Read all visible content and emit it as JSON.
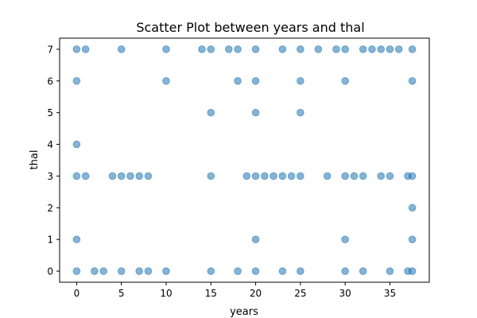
{
  "chart_data": {
    "type": "scatter",
    "title": "Scatter Plot between years and thal",
    "xlabel": "years",
    "ylabel": "thal",
    "xlim": [
      -1.9,
      39.4
    ],
    "ylim": [
      -0.35,
      7.35
    ],
    "xticks": [
      0,
      5,
      10,
      15,
      20,
      25,
      30,
      35
    ],
    "yticks": [
      0,
      1,
      2,
      3,
      4,
      5,
      6,
      7
    ],
    "marker_color": "#1f77b4",
    "marker_alpha": 0.55,
    "grid": false,
    "points": [
      [
        0,
        7
      ],
      [
        1,
        7
      ],
      [
        5,
        7
      ],
      [
        10,
        7
      ],
      [
        14,
        7
      ],
      [
        15,
        7
      ],
      [
        17,
        7
      ],
      [
        18,
        7
      ],
      [
        20,
        7
      ],
      [
        23,
        7
      ],
      [
        25,
        7
      ],
      [
        27,
        7
      ],
      [
        29,
        7
      ],
      [
        30,
        7
      ],
      [
        32,
        7
      ],
      [
        33,
        7
      ],
      [
        34,
        7
      ],
      [
        35,
        7
      ],
      [
        36,
        7
      ],
      [
        37.5,
        7
      ],
      [
        0,
        6
      ],
      [
        10,
        6
      ],
      [
        18,
        6
      ],
      [
        20,
        6
      ],
      [
        25,
        6
      ],
      [
        30,
        6
      ],
      [
        37.5,
        6
      ],
      [
        15,
        5
      ],
      [
        20,
        5
      ],
      [
        25,
        5
      ],
      [
        0,
        4
      ],
      [
        0,
        3
      ],
      [
        1,
        3
      ],
      [
        4,
        3
      ],
      [
        5,
        3
      ],
      [
        6,
        3
      ],
      [
        7,
        3
      ],
      [
        8,
        3
      ],
      [
        15,
        3
      ],
      [
        19,
        3
      ],
      [
        20,
        3
      ],
      [
        21,
        3
      ],
      [
        22,
        3
      ],
      [
        23,
        3
      ],
      [
        24,
        3
      ],
      [
        25,
        3
      ],
      [
        28,
        3
      ],
      [
        30,
        3
      ],
      [
        31,
        3
      ],
      [
        32,
        3
      ],
      [
        34,
        3
      ],
      [
        35,
        3
      ],
      [
        37,
        3
      ],
      [
        37.5,
        3
      ],
      [
        37.5,
        2
      ],
      [
        0,
        1
      ],
      [
        20,
        1
      ],
      [
        30,
        1
      ],
      [
        37.5,
        1
      ],
      [
        0,
        0
      ],
      [
        2,
        0
      ],
      [
        3,
        0
      ],
      [
        5,
        0
      ],
      [
        7,
        0
      ],
      [
        8,
        0
      ],
      [
        10,
        0
      ],
      [
        15,
        0
      ],
      [
        18,
        0
      ],
      [
        20,
        0
      ],
      [
        23,
        0
      ],
      [
        25,
        0
      ],
      [
        30,
        0
      ],
      [
        32,
        0
      ],
      [
        35,
        0
      ],
      [
        37,
        0
      ],
      [
        37.5,
        0
      ]
    ]
  }
}
